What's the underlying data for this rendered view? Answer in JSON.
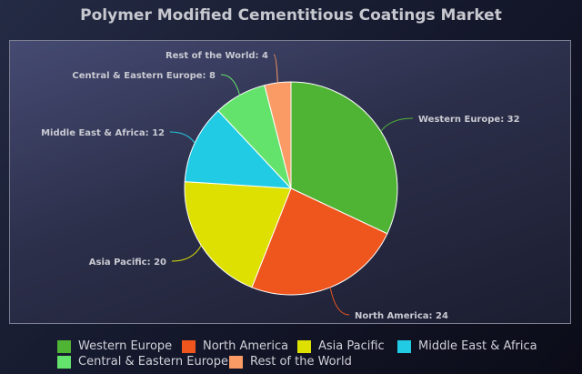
{
  "chart_data": {
    "type": "pie",
    "title": "Polymer Modified Cementitious Coatings Market",
    "slices": [
      {
        "label": "Western Europe",
        "value": 32,
        "color": "#4fb334",
        "data_label": "Western Europe: 32"
      },
      {
        "label": "North America",
        "value": 24,
        "color": "#ef561e",
        "data_label": "North America: 24"
      },
      {
        "label": "Asia Pacific",
        "value": 20,
        "color": "#dde000",
        "data_label": "Asia Pacific: 20"
      },
      {
        "label": "Middle East & Africa",
        "value": 12,
        "color": "#22cbe4",
        "data_label": "Middle East & Africa: 12"
      },
      {
        "label": "Central & Eastern Europe",
        "value": 8,
        "color": "#64e36c",
        "data_label": "Central & Eastern Europe: 8"
      },
      {
        "label": "Rest of the World",
        "value": 4,
        "color": "#fa9a64",
        "data_label": "Rest of the World: 4"
      }
    ],
    "legend_position": "bottom"
  }
}
